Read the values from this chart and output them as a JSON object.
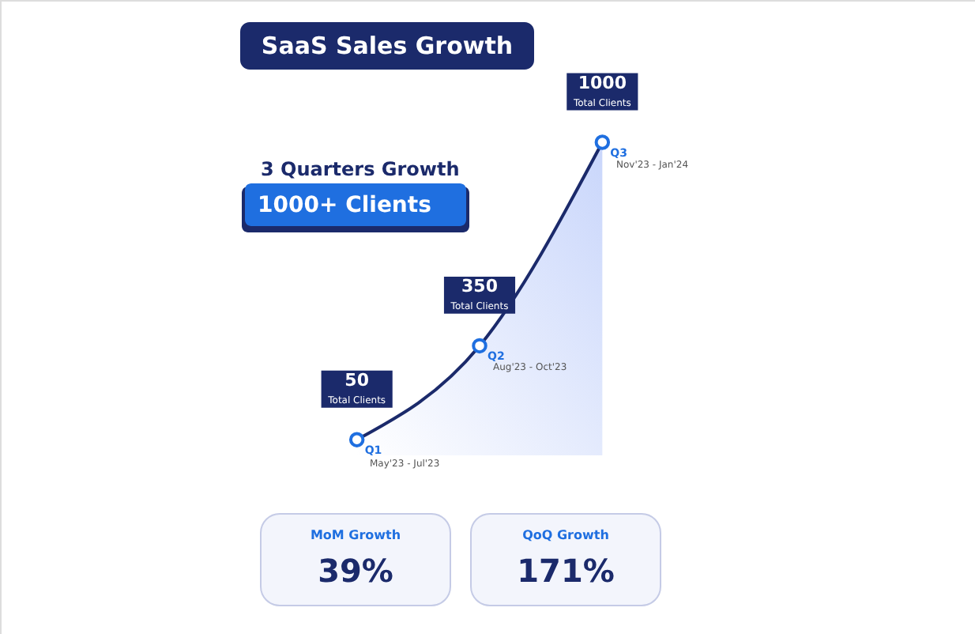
{
  "chart_data": {
    "type": "area",
    "title": "SaaS Sales Growth",
    "categories": [
      "Q1",
      "Q2",
      "Q3"
    ],
    "values": [
      50,
      350,
      1000
    ],
    "color": "#1b2a6b",
    "marker": "circle",
    "data_labels": true,
    "annotations": [
      "Total Clients",
      "Total Clients",
      "Total Clients",
      "May'23 - Jul'23",
      "Aug'23 - Oct'23",
      "Nov'23 - Jan'24",
      "3 Quarters Growth",
      "1000+ Clients",
      "MoM Growth",
      "39%",
      "QoQ Growth",
      "171%"
    ]
  }
}
